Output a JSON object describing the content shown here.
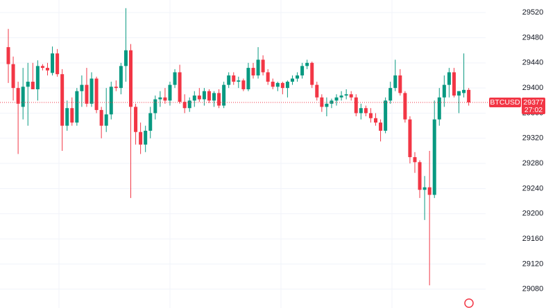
{
  "chart_data": {
    "type": "candlestick",
    "open": [
      29465,
      29438,
      29400,
      29370,
      29402,
      29410,
      29398,
      29435,
      29432,
      29424,
      29455,
      29422,
      29340,
      29368,
      29345,
      29395,
      29405,
      29375,
      29415,
      29365,
      29340,
      29358,
      29402,
      29400,
      29435,
      29460,
      29370,
      29330,
      29310,
      29332,
      29360,
      29382,
      29385,
      29380,
      29405,
      29425,
      29378,
      29368,
      29380,
      29388,
      29382,
      29395,
      29380,
      29392,
      29372,
      29405,
      29420,
      29410,
      29412,
      29398,
      29432,
      29420,
      29445,
      29425,
      29410,
      29402,
      29408,
      29400,
      29410,
      29415,
      29420,
      29435,
      29440,
      29405,
      29385,
      29370,
      29375,
      29380,
      29385,
      29388,
      29390,
      29385,
      29360,
      29368,
      29360,
      29352,
      29345,
      29332,
      29380,
      29400,
      29420,
      29392,
      29350,
      29290,
      29282,
      29238,
      29242,
      29230,
      29350,
      29385,
      29405,
      29425,
      29388,
      29392,
      29397
    ],
    "high": [
      29494,
      29450,
      29410,
      29432,
      29440,
      29440,
      29444,
      29438,
      29440,
      29466,
      29462,
      29430,
      29380,
      29385,
      29400,
      29420,
      29432,
      29425,
      29418,
      29370,
      29400,
      29410,
      29412,
      29440,
      29527,
      29470,
      29375,
      29345,
      29340,
      29370,
      29388,
      29395,
      29400,
      29410,
      29430,
      29437,
      29390,
      29385,
      29395,
      29400,
      29400,
      29398,
      29395,
      29398,
      29410,
      29425,
      29425,
      29418,
      29415,
      29440,
      29440,
      29465,
      29452,
      29430,
      29415,
      29410,
      29410,
      29412,
      29420,
      29425,
      29440,
      29445,
      29442,
      29410,
      29390,
      29385,
      29383,
      29390,
      29395,
      29398,
      29395,
      29390,
      29375,
      29372,
      29368,
      29360,
      29350,
      29385,
      29410,
      29445,
      29430,
      29395,
      29355,
      29298,
      29285,
      29260,
      29300,
      29380,
      29400,
      29420,
      29432,
      29432,
      29395,
      29455,
      29400
    ],
    "low": [
      29408,
      29380,
      29295,
      29350,
      29340,
      29398,
      29380,
      29428,
      29420,
      29420,
      29418,
      29300,
      29332,
      29340,
      29340,
      29370,
      29370,
      29370,
      29360,
      29320,
      29330,
      29350,
      29395,
      29390,
      29410,
      29225,
      29310,
      29295,
      29298,
      29320,
      29350,
      29370,
      29375,
      29372,
      29400,
      29375,
      29360,
      29362,
      29370,
      29378,
      29372,
      29376,
      29370,
      29368,
      29368,
      29400,
      29405,
      29400,
      29395,
      29395,
      29415,
      29415,
      29420,
      29405,
      29398,
      29395,
      29390,
      29385,
      29405,
      29410,
      29415,
      29430,
      29400,
      29380,
      29362,
      29355,
      29368,
      29372,
      29380,
      29382,
      29380,
      29355,
      29350,
      29355,
      29345,
      29340,
      29315,
      29328,
      29375,
      29395,
      29388,
      29345,
      29280,
      29265,
      29225,
      29190,
      29086,
      29225,
      29340,
      29370,
      29385,
      29385,
      29360,
      29385,
      29372
    ],
    "close": [
      29438,
      29400,
      29375,
      29402,
      29410,
      29398,
      29435,
      29432,
      29428,
      29455,
      29422,
      29340,
      29368,
      29345,
      29395,
      29405,
      29375,
      29415,
      29365,
      29340,
      29358,
      29402,
      29400,
      29435,
      29460,
      29370,
      29330,
      29310,
      29332,
      29360,
      29382,
      29385,
      29380,
      29405,
      29425,
      29378,
      29368,
      29380,
      29388,
      29382,
      29395,
      29380,
      29392,
      29372,
      29405,
      29420,
      29410,
      29412,
      29398,
      29432,
      29420,
      29445,
      29425,
      29410,
      29402,
      29408,
      29400,
      29410,
      29415,
      29420,
      29435,
      29440,
      29405,
      29385,
      29370,
      29375,
      29380,
      29385,
      29388,
      29390,
      29385,
      29360,
      29368,
      29360,
      29352,
      29345,
      29332,
      29380,
      29400,
      29420,
      29392,
      29350,
      29290,
      29282,
      29238,
      29242,
      29230,
      29350,
      29385,
      29405,
      29425,
      29388,
      29395,
      29397,
      29377
    ],
    "up_color": "#089981",
    "down_color": "#f23645",
    "ylim": [
      29050,
      29540
    ],
    "yticks": [
      29080,
      29120,
      29160,
      29200,
      29240,
      29280,
      29320,
      29360,
      29400,
      29440,
      29480,
      29520
    ],
    "grid": true,
    "last_price": {
      "symbol": "BTCUSD",
      "value": 29377,
      "countdown": "27:02"
    }
  }
}
